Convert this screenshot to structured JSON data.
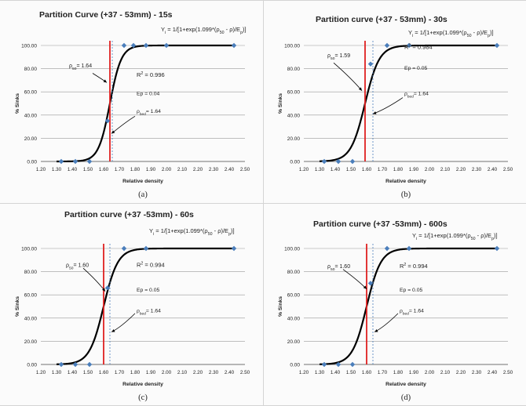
{
  "colors": {
    "curve": "#000000",
    "points": "#4a7ebb",
    "d50_line": "#e02020",
    "dbed_line": "#4a7ebb",
    "grid": "#9a9a9a",
    "arrow": "#000000"
  },
  "chart_data": [
    {
      "type": "line",
      "panel_label": "(a)",
      "title": "Partition Curve (+37 - 53mm) - 15s",
      "equation": "Yi = 1/[1+exp(1.099*(ρ50 - ρ)/Ep)]",
      "xlabel": "Relative density",
      "ylabel": "% Sinks",
      "xlim": [
        1.2,
        2.5
      ],
      "ylim": [
        0,
        100
      ],
      "x_ticks": [
        "1.20",
        "1.30",
        "1.40",
        "1.50",
        "1.60",
        "1.70",
        "1.80",
        "1.90",
        "2.00",
        "2.10",
        "2.20",
        "2.30",
        "2.40",
        "2.50"
      ],
      "y_ticks": [
        "0.00",
        "20.00",
        "40.00",
        "60.00",
        "80.00",
        "100.00"
      ],
      "grid": "horizontal",
      "d50": 1.64,
      "dbed": 1.64,
      "ep": 0.04,
      "annotations": {
        "d50": "ρ50= 1.64",
        "r2": "R2 = 0.996",
        "ep": "Ep = 0.04",
        "dbed": "ρbed= 1.64"
      },
      "series": [
        {
          "x": [
            1.33,
            1.42,
            1.51,
            1.625,
            1.73,
            1.79,
            1.87,
            2.0,
            2.43
          ],
          "y": [
            0,
            0,
            0,
            35,
            100,
            100,
            100,
            100,
            100
          ]
        }
      ]
    },
    {
      "type": "line",
      "panel_label": "(b)",
      "title": "Partition curve (+37 - 53mm) - 30s",
      "equation": "Yi = 1/[1+exp(1.099*(ρ50 - ρ)/Ep)]",
      "xlabel": "Relative density",
      "ylabel": "% Sinks",
      "xlim": [
        1.2,
        2.5
      ],
      "ylim": [
        0,
        100
      ],
      "x_ticks": [
        "1.20",
        "1.30",
        "1.40",
        "1.50",
        "1.60",
        "1.70",
        "1.80",
        "1.90",
        "2.00",
        "2.10",
        "2.20",
        "2.30",
        "2.40",
        "2.50"
      ],
      "y_ticks": [
        "0.00",
        "20.00",
        "40.00",
        "60.00",
        "80.00",
        "100.00"
      ],
      "grid": "horizontal",
      "d50": 1.59,
      "dbed": 1.64,
      "ep": 0.05,
      "annotations": {
        "d50": "ρ50= 1.59",
        "r2": "R2 = 0.984",
        "ep": "Ep = 0.05",
        "dbed": "ρbed= 1.64"
      },
      "series": [
        {
          "x": [
            1.33,
            1.42,
            1.51,
            1.625,
            1.73,
            1.87,
            2.43
          ],
          "y": [
            0,
            0,
            0,
            84,
            100,
            100,
            100
          ]
        }
      ]
    },
    {
      "type": "line",
      "panel_label": "(c)",
      "title": "Partition curve (+37 -53mm) - 60s",
      "equation": "Yi = 1/[1+exp(1.099*(ρ50 - ρ)/Ep)]",
      "xlabel": "Relative density",
      "ylabel": "% Sinks",
      "xlim": [
        1.2,
        2.5
      ],
      "ylim": [
        0,
        100
      ],
      "x_ticks": [
        "1.20",
        "1.30",
        "1.40",
        "1.50",
        "1.60",
        "1.70",
        "1.80",
        "1.90",
        "2.00",
        "2.10",
        "2.20",
        "2.30",
        "2.40",
        "2.50"
      ],
      "y_ticks": [
        "0.00",
        "20.00",
        "40.00",
        "60.00",
        "80.00",
        "100.00"
      ],
      "grid": "horizontal",
      "d50": 1.6,
      "dbed": 1.64,
      "ep": 0.05,
      "annotations": {
        "d50": "ρ50= 1.60",
        "r2": "R2 = 0.994",
        "ep": "Ep = 0.05",
        "dbed": "ρbed= 1.64"
      },
      "series": [
        {
          "x": [
            1.33,
            1.42,
            1.51,
            1.625,
            1.73,
            1.87,
            2.43
          ],
          "y": [
            0,
            0,
            0,
            66,
            100,
            100,
            100
          ]
        }
      ]
    },
    {
      "type": "line",
      "panel_label": "(d)",
      "title": "Partition curve (+37 -53mm) - 600s",
      "equation": "Yi = 1/[1+exp(1.099*(ρ50 - ρ)/Ep)]",
      "xlabel": "Relative density",
      "ylabel": "% Sinks",
      "xlim": [
        1.2,
        2.5
      ],
      "ylim": [
        0,
        100
      ],
      "x_ticks": [
        "1.20",
        "1.30",
        "1.40",
        "1.50",
        "1.60",
        "1.70",
        "1.80",
        "1.90",
        "2.00",
        "2.10",
        "2.20",
        "2.30",
        "2.40",
        "2.50"
      ],
      "y_ticks": [
        "0.00",
        "20.00",
        "40.00",
        "60.00",
        "80.00",
        "100.00"
      ],
      "grid": "horizontal",
      "d50": 1.6,
      "dbed": 1.64,
      "ep": 0.05,
      "annotations": {
        "d50": "ρ50= 1.60",
        "r2": "R2 = 0.994",
        "ep": "Ep = 0.05",
        "dbed": "ρbed= 1.64"
      },
      "series": [
        {
          "x": [
            1.33,
            1.42,
            1.51,
            1.625,
            1.73,
            1.87,
            2.43
          ],
          "y": [
            0,
            0,
            0,
            70,
            100,
            100,
            100
          ]
        }
      ]
    }
  ]
}
